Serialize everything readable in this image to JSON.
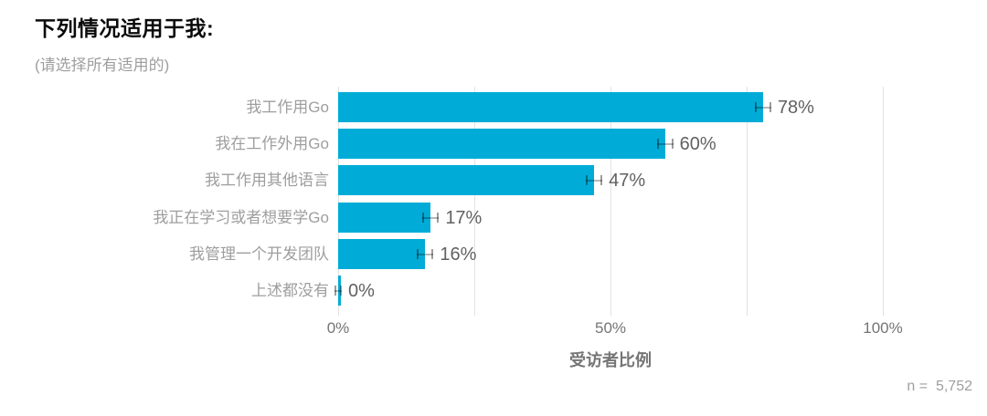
{
  "header": {
    "title": "下列情况适用于我:",
    "subtitle": "(请选择所有适用的)"
  },
  "chart_data": {
    "type": "bar",
    "orientation": "horizontal",
    "title": "下列情况适用于我:",
    "subtitle": "(请选择所有适用的)",
    "categories": [
      "我工作用Go",
      "我在工作外用Go",
      "我工作用其他语言",
      "我正在学习或者想要学Go",
      "我管理一个开发团队",
      "上述都没有"
    ],
    "values": [
      78,
      60,
      47,
      17,
      16,
      0
    ],
    "value_labels": [
      "78%",
      "60%",
      "47%",
      "17%",
      "16%",
      "0%"
    ],
    "error_bars": true,
    "xlabel": "受访者比例",
    "xlim": [
      0,
      100
    ],
    "x_ticks": [
      {
        "value": 0,
        "label": "0%"
      },
      {
        "value": 50,
        "label": "50%"
      },
      {
        "value": 100,
        "label": "100%"
      }
    ],
    "gridlines_pct": [
      0,
      25,
      50,
      75,
      100
    ],
    "grid_on": true,
    "legend": "none",
    "bar_color": "#00ACD7",
    "grid_color": "#e2e2e2"
  },
  "footer": {
    "sample_size_label": "n =  5,752"
  }
}
